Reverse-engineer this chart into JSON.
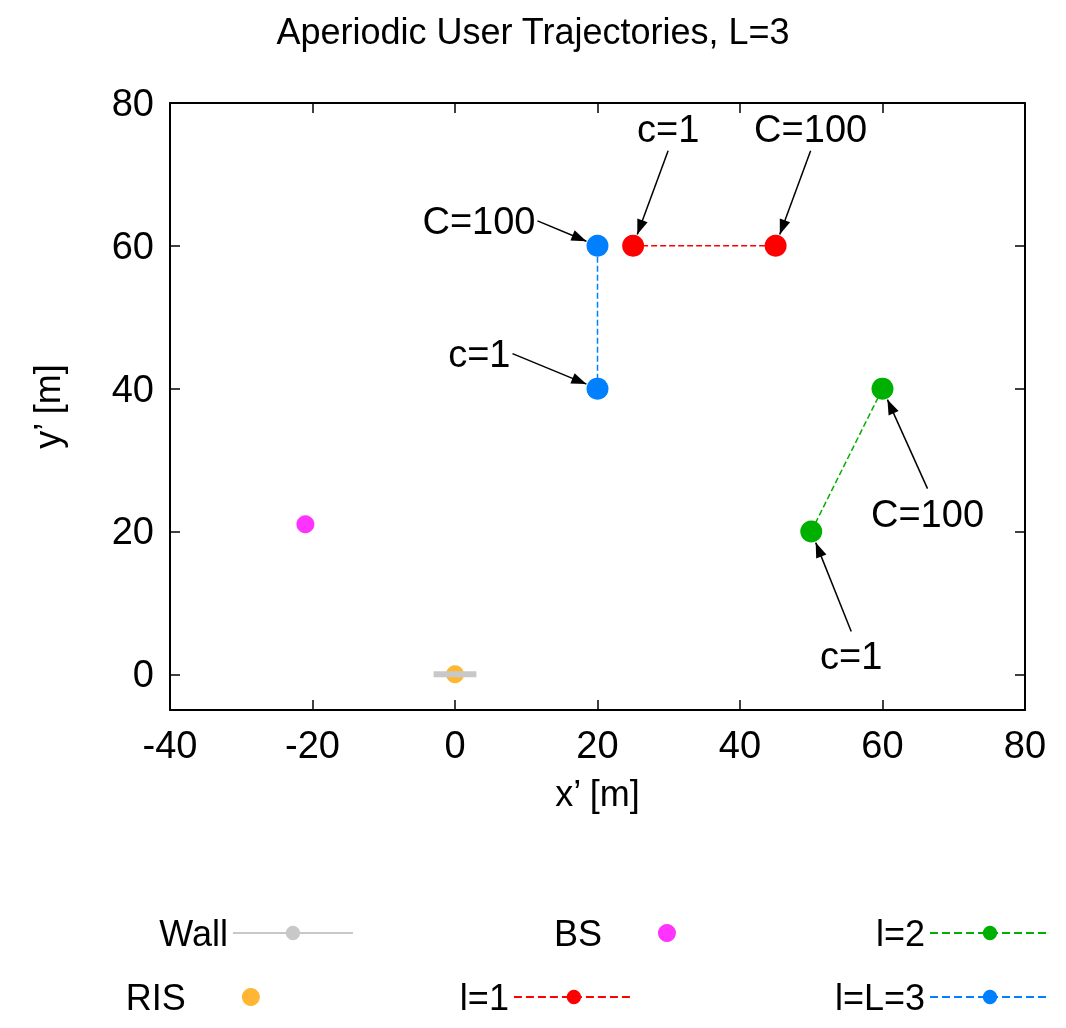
{
  "chart_data": {
    "type": "line",
    "title": "Aperiodic User Trajectories, L=3",
    "xlabel": "x’ [m]",
    "ylabel": "y’ [m]",
    "xlim": [
      -40,
      80
    ],
    "ylim": [
      -5,
      80
    ],
    "xticks": [
      -40,
      -20,
      0,
      20,
      40,
      60,
      80
    ],
    "yticks": [
      0,
      20,
      40,
      60,
      80
    ],
    "grid": false,
    "legend": "bottom",
    "series": [
      {
        "name": "Wall",
        "color": "#c8c8c8",
        "x": [
          -3,
          3
        ],
        "values": [
          0,
          0
        ],
        "marker": "none",
        "line_style": "solid"
      },
      {
        "name": "BS",
        "type": "scatter",
        "color": "#ff00ff",
        "x": [
          -21
        ],
        "values": [
          21
        ],
        "marker": "circle"
      },
      {
        "name": "l=2",
        "color": "#00b000",
        "x": [
          50,
          60
        ],
        "values": [
          20,
          40
        ],
        "marker": "circle",
        "line_style": "dashed"
      },
      {
        "name": "RIS",
        "type": "scatter",
        "color": "#ffa500",
        "x": [
          0
        ],
        "values": [
          0
        ],
        "marker": "circle"
      },
      {
        "name": "l=1",
        "color": "#ff0000",
        "x": [
          25,
          45
        ],
        "values": [
          60,
          60
        ],
        "marker": "circle",
        "line_style": "dashed"
      },
      {
        "name": "l=L=3",
        "color": "#0080ff",
        "x": [
          20,
          20
        ],
        "values": [
          40,
          60
        ],
        "marker": "circle",
        "line_style": "dashed"
      }
    ],
    "annotations": [
      {
        "text": "C=100",
        "x": 20,
        "y": 60
      },
      {
        "text": "c=1",
        "x": 20,
        "y": 40
      },
      {
        "text": "c=1",
        "x": 25,
        "y": 60
      },
      {
        "text": "C=100",
        "x": 45,
        "y": 60
      },
      {
        "text": "C=100",
        "x": 60,
        "y": 40
      },
      {
        "text": "c=1",
        "x": 50,
        "y": 20
      }
    ]
  }
}
